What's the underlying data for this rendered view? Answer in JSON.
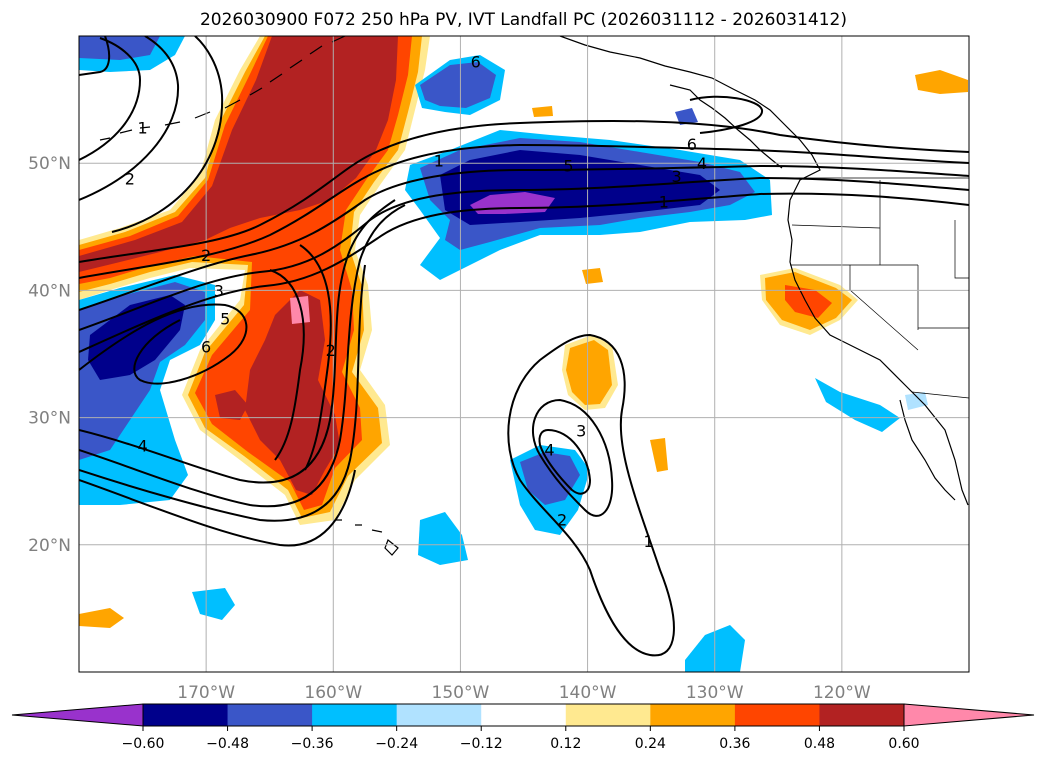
{
  "title": "2026030900 F072 250 hPa PV, IVT Landfall PC (2026031112 - 2026031412)",
  "map": {
    "lon_range": [
      -180,
      -110
    ],
    "lat_range": [
      10,
      60
    ],
    "lat_labels": [
      "50°N",
      "40°N",
      "30°N",
      "20°N"
    ],
    "lat_values": [
      50,
      40,
      30,
      20
    ],
    "lon_labels": [
      "170°W",
      "160°W",
      "150°W",
      "140°W",
      "130°W",
      "120°W"
    ],
    "lon_values": [
      -170,
      -160,
      -150,
      -140,
      -130,
      -120
    ]
  },
  "contour_labels": [
    {
      "text": "1",
      "lon": -175.0,
      "lat": 52.8
    },
    {
      "text": "2",
      "lon": -176.0,
      "lat": 48.8
    },
    {
      "text": "2",
      "lon": -170.0,
      "lat": 42.8
    },
    {
      "text": "3",
      "lon": -169.0,
      "lat": 40.0
    },
    {
      "text": "5",
      "lon": -168.5,
      "lat": 37.8
    },
    {
      "text": "6",
      "lon": -170.0,
      "lat": 35.6
    },
    {
      "text": "4",
      "lon": -175.0,
      "lat": 27.8
    },
    {
      "text": "2",
      "lon": -160.2,
      "lat": 35.3
    },
    {
      "text": "1",
      "lon": -151.7,
      "lat": 50.2
    },
    {
      "text": "5",
      "lon": -141.5,
      "lat": 49.8
    },
    {
      "text": "6",
      "lon": -148.8,
      "lat": 58.0
    },
    {
      "text": "6",
      "lon": -131.8,
      "lat": 51.5
    },
    {
      "text": "4",
      "lon": -131.0,
      "lat": 50.0
    },
    {
      "text": "3",
      "lon": -133.0,
      "lat": 49.0
    },
    {
      "text": "1",
      "lon": -134.0,
      "lat": 47.0
    },
    {
      "text": "3",
      "lon": -140.5,
      "lat": 29.0
    },
    {
      "text": "4",
      "lon": -143.0,
      "lat": 27.5
    },
    {
      "text": "2",
      "lon": -142.0,
      "lat": 22.0
    },
    {
      "text": "1",
      "lon": -135.2,
      "lat": 20.3
    }
  ],
  "colorbar": {
    "ticks": [
      "−0.60",
      "−0.48",
      "−0.36",
      "−0.24",
      "−0.12",
      "0.12",
      "0.24",
      "0.36",
      "0.48",
      "0.60"
    ],
    "colors": [
      "#9932cc",
      "#00008b",
      "#3a56c8",
      "#00bfff",
      "#b0e2ff",
      "#ffffff",
      "#ffe990",
      "#ffa500",
      "#ff4500",
      "#b22222",
      "#ff88aa",
      "#ff88aa"
    ]
  }
}
